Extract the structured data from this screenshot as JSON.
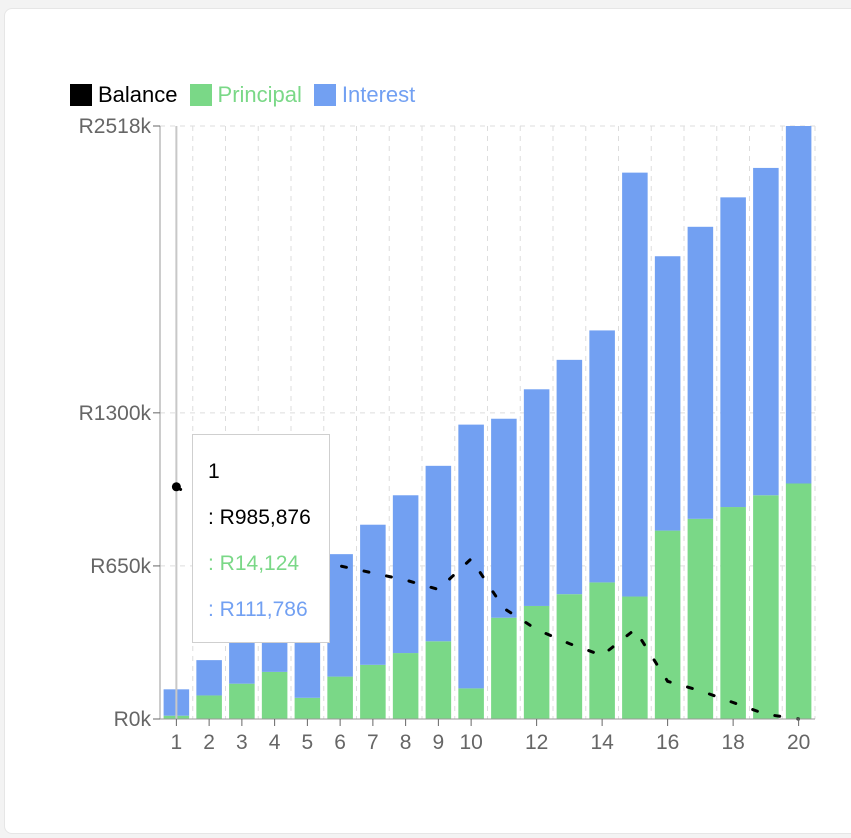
{
  "chart_data": {
    "type": "bar",
    "stacked": true,
    "x": [
      1,
      2,
      3,
      4,
      5,
      6,
      7,
      8,
      9,
      10,
      11,
      12,
      13,
      14,
      15,
      16,
      17,
      18,
      19,
      20
    ],
    "x_tick_labels": [
      "1",
      "2",
      "3",
      "4",
      "5",
      "6",
      "7",
      "8",
      "9",
      "10",
      "12",
      "14",
      "16",
      "18",
      "20"
    ],
    "y_tick_labels": [
      "R2518k",
      "R1300k",
      "R650k",
      "R0k"
    ],
    "y_ticks": [
      2518,
      1300,
      650,
      0
    ],
    "ylim": [
      0,
      2518
    ],
    "series": [
      {
        "name": "Principal",
        "color": "#7ad887",
        "type": "bar",
        "values": [
          14,
          100,
          150,
          200,
          90,
          180,
          230,
          280,
          330,
          130,
          430,
          480,
          530,
          580,
          520,
          800,
          850,
          900,
          950,
          1000
        ]
      },
      {
        "name": "Interest",
        "color": "#72a0f2",
        "type": "bar",
        "values": [
          112,
          150,
          225,
          300,
          485,
          520,
          595,
          670,
          745,
          1120,
          845,
          920,
          995,
          1070,
          1800,
          1165,
          1240,
          1315,
          1390,
          1518
        ]
      },
      {
        "name": "Balance",
        "color": "#000000",
        "type": "line",
        "style": "dashed",
        "values": [
          986,
          900,
          820,
          750,
          700,
          650,
          620,
          590,
          550,
          680,
          470,
          380,
          320,
          270,
          380,
          160,
          120,
          70,
          20,
          0
        ]
      }
    ],
    "grid": true,
    "legend_position": "top-left",
    "tooltip": {
      "title": "1",
      "balance": ": R985,876",
      "principal": ": R14,124",
      "interest": ": R111,786"
    }
  },
  "colors": {
    "principal": "#7ad887",
    "interest": "#72a0f2",
    "balance": "#000000"
  }
}
